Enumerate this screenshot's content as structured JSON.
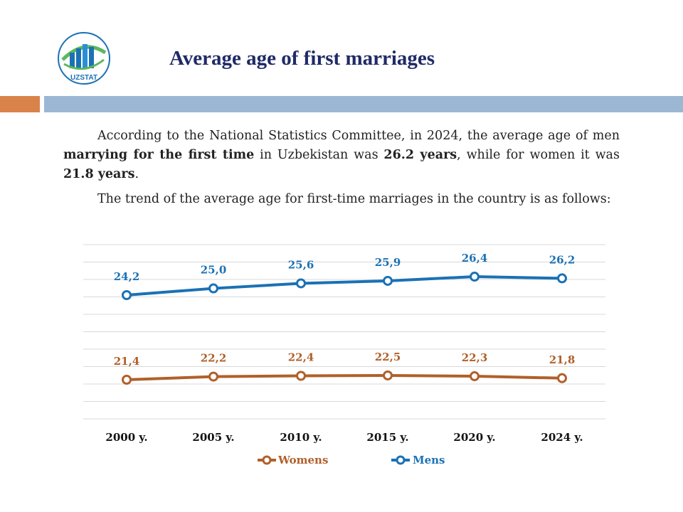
{
  "colors": {
    "title": "#1F2A66",
    "band_orange": "#D9834A",
    "band_blue": "#9BB7D4",
    "womens": "#B0602A",
    "mens": "#1B71B4",
    "grid": "#D9D9D9",
    "logo_green": "#5CB85C",
    "logo_blue": "#1B71B4"
  },
  "logo": {
    "text": "UZSTAT",
    "icon": "bar-chart-logo"
  },
  "title": "Average age of first marriages",
  "text": {
    "p1_a": "According to the National Statistics Committee, in 2024, the average age of men ",
    "p1_b": "marrying for the first time",
    "p1_c": " in Uzbekistan was ",
    "p1_d": "26.2 years",
    "p1_e": ", while for women it was ",
    "p1_f": "21.8 years",
    "p1_g": ".",
    "p2": "The trend of the average age for first-time marriages in the country is as follows:"
  },
  "chart_data": {
    "type": "line",
    "categories": [
      "2000 y.",
      "2005 y.",
      "2010 y.",
      "2015 y.",
      "2020 y.",
      "2024 y."
    ],
    "series": [
      {
        "name": "Mens",
        "values": [
          24.2,
          25.0,
          25.6,
          25.9,
          26.4,
          26.2
        ],
        "labels": [
          "24,2",
          "25,0",
          "25,6",
          "25,9",
          "26,4",
          "26,2"
        ]
      },
      {
        "name": "Womens",
        "values": [
          21.4,
          22.2,
          22.4,
          22.5,
          22.3,
          21.8
        ],
        "labels": [
          "21,4",
          "22,2",
          "22,4",
          "22,5",
          "22,3",
          "21,8"
        ]
      }
    ],
    "legend": [
      "Womens",
      "Mens"
    ],
    "legend_position": "bottom",
    "gridlines": true
  }
}
